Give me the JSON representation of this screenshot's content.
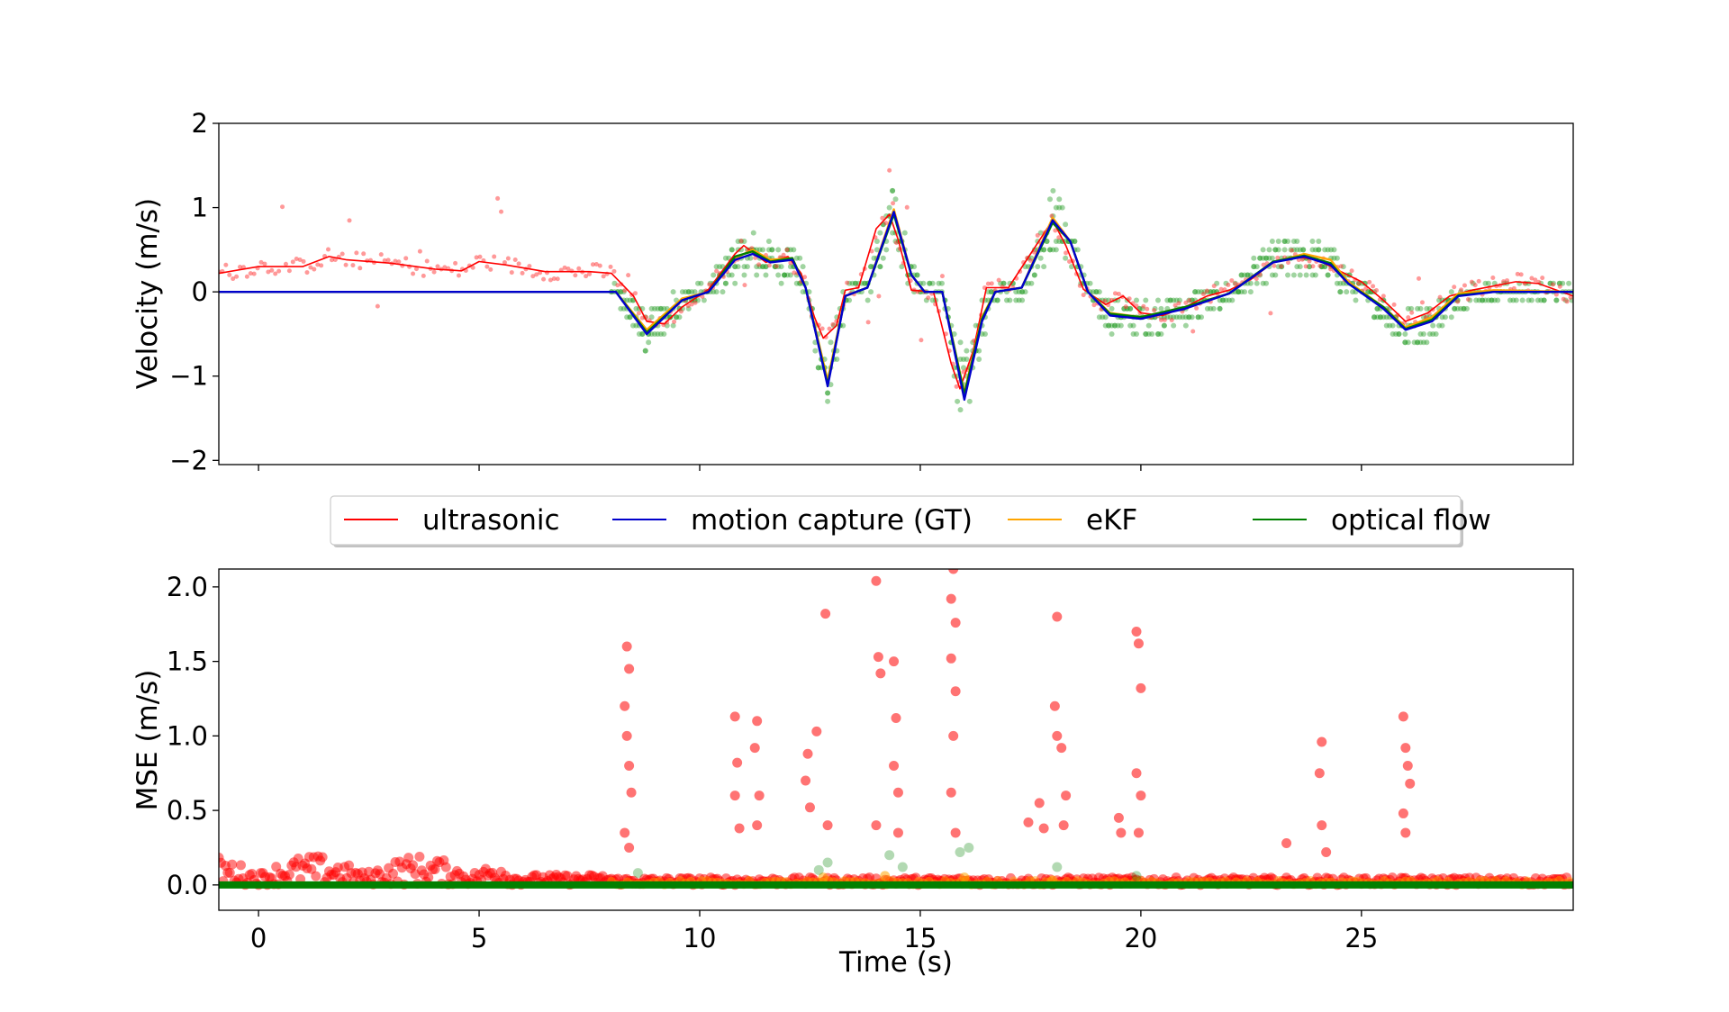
{
  "chart_data": [
    {
      "type": "line",
      "panel": "top",
      "ylabel": "Velocity (m/s)",
      "xlabel": "",
      "xlim": [
        -0.9,
        29.8
      ],
      "ylim": [
        -2.05,
        2.0
      ],
      "xticks": [
        0,
        5,
        10,
        15,
        20,
        25
      ],
      "yticks": [
        -2,
        -1,
        0,
        1,
        2
      ],
      "ytick_labels": [
        "−2",
        "−1",
        "0",
        "1",
        "2"
      ],
      "series": [
        {
          "name": "ultrasonic",
          "color": "#ff0000",
          "points": [
            [
              -0.9,
              0.22
            ],
            [
              0,
              0.3
            ],
            [
              1,
              0.3
            ],
            [
              1.6,
              0.42
            ],
            [
              2,
              0.38
            ],
            [
              3,
              0.34
            ],
            [
              4,
              0.27
            ],
            [
              4.6,
              0.25
            ],
            [
              5,
              0.36
            ],
            [
              5.6,
              0.32
            ],
            [
              6.5,
              0.24
            ],
            [
              7.5,
              0.24
            ],
            [
              8,
              0.22
            ],
            [
              8.5,
              -0.05
            ],
            [
              8.8,
              -0.35
            ],
            [
              9.2,
              -0.38
            ],
            [
              9.6,
              -0.18
            ],
            [
              10.2,
              0.03
            ],
            [
              10.8,
              0.45
            ],
            [
              11,
              0.55
            ],
            [
              11.5,
              0.35
            ],
            [
              12,
              0.42
            ],
            [
              12.3,
              0.22
            ],
            [
              12.6,
              -0.3
            ],
            [
              12.8,
              -0.55
            ],
            [
              13.1,
              -0.4
            ],
            [
              13.3,
              0.02
            ],
            [
              13.6,
              0.05
            ],
            [
              14.0,
              0.75
            ],
            [
              14.3,
              0.92
            ],
            [
              14.5,
              0.62
            ],
            [
              14.8,
              0.02
            ],
            [
              15.3,
              0.0
            ],
            [
              15.7,
              -0.85
            ],
            [
              15.9,
              -1.15
            ],
            [
              16.2,
              -0.7
            ],
            [
              16.5,
              0.05
            ],
            [
              17,
              0.05
            ],
            [
              17.5,
              0.45
            ],
            [
              18,
              0.85
            ],
            [
              18.3,
              0.55
            ],
            [
              18.7,
              0.03
            ],
            [
              19.2,
              -0.15
            ],
            [
              19.6,
              -0.05
            ],
            [
              20,
              -0.25
            ],
            [
              20.5,
              -0.28
            ],
            [
              21,
              -0.18
            ],
            [
              21.5,
              -0.05
            ],
            [
              22,
              0.02
            ],
            [
              22.5,
              0.15
            ],
            [
              23,
              0.35
            ],
            [
              23.5,
              0.42
            ],
            [
              24,
              0.38
            ],
            [
              24.5,
              0.25
            ],
            [
              25,
              0.12
            ],
            [
              25.5,
              -0.1
            ],
            [
              26,
              -0.35
            ],
            [
              26.5,
              -0.25
            ],
            [
              27,
              -0.05
            ],
            [
              27.5,
              0.02
            ],
            [
              28,
              0.07
            ],
            [
              28.5,
              0.12
            ],
            [
              29,
              0.1
            ],
            [
              29.8,
              -0.05
            ]
          ]
        },
        {
          "name": "motion capture (GT)",
          "color": "#0000cc",
          "points": [
            [
              -0.9,
              0
            ],
            [
              8.1,
              0
            ],
            [
              8.8,
              -0.5
            ],
            [
              9.6,
              -0.1
            ],
            [
              10.2,
              0
            ],
            [
              10.8,
              0.38
            ],
            [
              11.2,
              0.45
            ],
            [
              11.6,
              0.35
            ],
            [
              12.1,
              0.38
            ],
            [
              12.4,
              0.05
            ],
            [
              12.9,
              -1.12
            ],
            [
              13.3,
              -0.05
            ],
            [
              13.8,
              0.05
            ],
            [
              14.4,
              0.95
            ],
            [
              14.8,
              0.2
            ],
            [
              15.1,
              0
            ],
            [
              15.5,
              0
            ],
            [
              16.0,
              -1.28
            ],
            [
              16.4,
              -0.35
            ],
            [
              16.7,
              0
            ],
            [
              17.3,
              0.05
            ],
            [
              18.0,
              0.85
            ],
            [
              18.4,
              0.6
            ],
            [
              18.8,
              0
            ],
            [
              19.3,
              -0.28
            ],
            [
              20,
              -0.32
            ],
            [
              21,
              -0.2
            ],
            [
              22,
              -0.02
            ],
            [
              23,
              0.35
            ],
            [
              23.7,
              0.42
            ],
            [
              24.3,
              0.32
            ],
            [
              24.7,
              0.1
            ],
            [
              25.5,
              -0.2
            ],
            [
              26,
              -0.45
            ],
            [
              26.6,
              -0.35
            ],
            [
              27.2,
              -0.05
            ],
            [
              28,
              0
            ],
            [
              29.8,
              0
            ]
          ]
        },
        {
          "name": "eKF",
          "color": "#ffa500",
          "points": [
            [
              -0.9,
              0
            ],
            [
              8.1,
              0
            ],
            [
              8.8,
              -0.45
            ],
            [
              9.6,
              -0.08
            ],
            [
              10.2,
              0
            ],
            [
              10.8,
              0.4
            ],
            [
              11.2,
              0.5
            ],
            [
              11.6,
              0.38
            ],
            [
              12.1,
              0.4
            ],
            [
              12.4,
              0.05
            ],
            [
              12.9,
              -1.05
            ],
            [
              13.3,
              -0.05
            ],
            [
              13.8,
              0.05
            ],
            [
              14.4,
              0.98
            ],
            [
              14.8,
              0.2
            ],
            [
              15.1,
              0
            ],
            [
              15.5,
              0
            ],
            [
              16.0,
              -1.2
            ],
            [
              16.4,
              -0.3
            ],
            [
              16.7,
              0
            ],
            [
              17.3,
              0.05
            ],
            [
              18.0,
              0.88
            ],
            [
              18.4,
              0.6
            ],
            [
              18.8,
              0
            ],
            [
              19.3,
              -0.25
            ],
            [
              20,
              -0.3
            ],
            [
              21,
              -0.18
            ],
            [
              22,
              -0.02
            ],
            [
              23,
              0.35
            ],
            [
              23.7,
              0.45
            ],
            [
              24.3,
              0.38
            ],
            [
              24.7,
              0.12
            ],
            [
              25.5,
              -0.18
            ],
            [
              26,
              -0.42
            ],
            [
              26.6,
              -0.3
            ],
            [
              27.2,
              -0.02
            ],
            [
              28,
              0.02
            ],
            [
              29.8,
              0
            ]
          ]
        },
        {
          "name": "optical flow",
          "color": "#008000",
          "points": [
            [
              -0.9,
              0
            ],
            [
              8.1,
              0
            ],
            [
              8.8,
              -0.48
            ],
            [
              9.6,
              -0.1
            ],
            [
              10.2,
              0
            ],
            [
              10.8,
              0.42
            ],
            [
              11.2,
              0.48
            ],
            [
              11.6,
              0.36
            ],
            [
              12.1,
              0.4
            ],
            [
              12.4,
              0.05
            ],
            [
              12.9,
              -1.1
            ],
            [
              13.3,
              -0.05
            ],
            [
              13.8,
              0.05
            ],
            [
              14.4,
              0.92
            ],
            [
              14.8,
              0.2
            ],
            [
              15.1,
              0
            ],
            [
              15.5,
              0
            ],
            [
              16.0,
              -1.22
            ],
            [
              16.4,
              -0.32
            ],
            [
              16.7,
              0
            ],
            [
              17.3,
              0.05
            ],
            [
              18.0,
              0.82
            ],
            [
              18.4,
              0.6
            ],
            [
              18.8,
              0
            ],
            [
              19.3,
              -0.26
            ],
            [
              20,
              -0.3
            ],
            [
              21,
              -0.18
            ],
            [
              22,
              -0.02
            ],
            [
              23,
              0.36
            ],
            [
              23.7,
              0.43
            ],
            [
              24.3,
              0.34
            ],
            [
              24.7,
              0.1
            ],
            [
              25.5,
              -0.18
            ],
            [
              26,
              -0.44
            ],
            [
              26.6,
              -0.33
            ],
            [
              27.2,
              -0.04
            ],
            [
              28,
              0
            ],
            [
              29.8,
              0
            ]
          ]
        }
      ]
    },
    {
      "type": "scatter",
      "panel": "bottom",
      "ylabel": "MSE (m/s)",
      "xlabel": "Time (s)",
      "xlim": [
        -0.9,
        29.8
      ],
      "ylim": [
        -0.17,
        2.12
      ],
      "xticks": [
        0,
        5,
        10,
        15,
        20,
        25
      ],
      "yticks": [
        0.0,
        0.5,
        1.0,
        1.5,
        2.0
      ],
      "ytick_labels": [
        "0.0",
        "0.5",
        "1.0",
        "1.5",
        "2.0"
      ],
      "series": [
        {
          "name": "ultrasonic",
          "color": "#ff0000",
          "points": [
            [
              8.35,
              1.6
            ],
            [
              8.4,
              1.45
            ],
            [
              8.3,
              1.2
            ],
            [
              8.35,
              1.0
            ],
            [
              8.4,
              0.8
            ],
            [
              8.45,
              0.62
            ],
            [
              8.3,
              0.35
            ],
            [
              8.4,
              0.25
            ],
            [
              10.8,
              1.13
            ],
            [
              10.85,
              0.82
            ],
            [
              10.8,
              0.6
            ],
            [
              10.9,
              0.38
            ],
            [
              11.3,
              1.1
            ],
            [
              11.25,
              0.92
            ],
            [
              11.35,
              0.6
            ],
            [
              11.3,
              0.4
            ],
            [
              12.45,
              0.88
            ],
            [
              12.4,
              0.7
            ],
            [
              12.5,
              0.52
            ],
            [
              12.65,
              1.03
            ],
            [
              12.85,
              1.82
            ],
            [
              12.9,
              0.4
            ],
            [
              14.0,
              2.04
            ],
            [
              14.05,
              1.53
            ],
            [
              14.1,
              1.42
            ],
            [
              14.0,
              0.4
            ],
            [
              14.4,
              1.5
            ],
            [
              14.45,
              1.12
            ],
            [
              14.4,
              0.8
            ],
            [
              14.5,
              0.62
            ],
            [
              14.5,
              0.35
            ],
            [
              15.75,
              2.12
            ],
            [
              15.7,
              1.92
            ],
            [
              15.8,
              1.76
            ],
            [
              15.7,
              1.52
            ],
            [
              15.8,
              1.3
            ],
            [
              15.75,
              1.0
            ],
            [
              15.7,
              0.62
            ],
            [
              15.8,
              0.35
            ],
            [
              17.45,
              0.42
            ],
            [
              17.7,
              0.55
            ],
            [
              17.8,
              0.38
            ],
            [
              18.1,
              1.8
            ],
            [
              18.05,
              1.2
            ],
            [
              18.1,
              1.0
            ],
            [
              18.2,
              0.92
            ],
            [
              18.3,
              0.6
            ],
            [
              18.25,
              0.4
            ],
            [
              19.5,
              0.45
            ],
            [
              19.55,
              0.35
            ],
            [
              19.9,
              1.7
            ],
            [
              19.95,
              1.62
            ],
            [
              20.0,
              1.32
            ],
            [
              19.9,
              0.75
            ],
            [
              20.0,
              0.6
            ],
            [
              19.95,
              0.35
            ],
            [
              23.3,
              0.28
            ],
            [
              24.1,
              0.96
            ],
            [
              24.05,
              0.75
            ],
            [
              24.1,
              0.4
            ],
            [
              24.2,
              0.22
            ],
            [
              25.95,
              1.13
            ],
            [
              26.0,
              0.92
            ],
            [
              26.05,
              0.8
            ],
            [
              26.1,
              0.68
            ],
            [
              25.95,
              0.48
            ],
            [
              26.0,
              0.35
            ]
          ]
        },
        {
          "name": "eKF",
          "color": "#ffa500",
          "points": [
            [
              12.8,
              0.05
            ],
            [
              14.2,
              0.06
            ],
            [
              16.0,
              0.05
            ],
            [
              18.0,
              0.03
            ]
          ]
        },
        {
          "name": "optical flow",
          "color": "#008000",
          "points": [
            [
              8.6,
              0.08
            ],
            [
              12.9,
              0.15
            ],
            [
              12.7,
              0.1
            ],
            [
              14.3,
              0.2
            ],
            [
              14.6,
              0.12
            ],
            [
              15.9,
              0.22
            ],
            [
              16.1,
              0.25
            ],
            [
              18.1,
              0.12
            ],
            [
              19.9,
              0.06
            ]
          ]
        }
      ]
    }
  ],
  "legend": {
    "placement": "between panels",
    "entries": [
      {
        "label": "ultrasonic",
        "color": "#ff0000"
      },
      {
        "label": "motion capture (GT)",
        "color": "#0000cc"
      },
      {
        "label": "eKF",
        "color": "#ffa500"
      },
      {
        "label": "optical flow",
        "color": "#008000"
      }
    ]
  },
  "xtick_labels": [
    "0",
    "5",
    "10",
    "15",
    "20",
    "25"
  ],
  "top_ylabel": "Velocity (m/s)",
  "bottom_ylabel": "MSE (m/s)",
  "bottom_xlabel": "Time (s)"
}
